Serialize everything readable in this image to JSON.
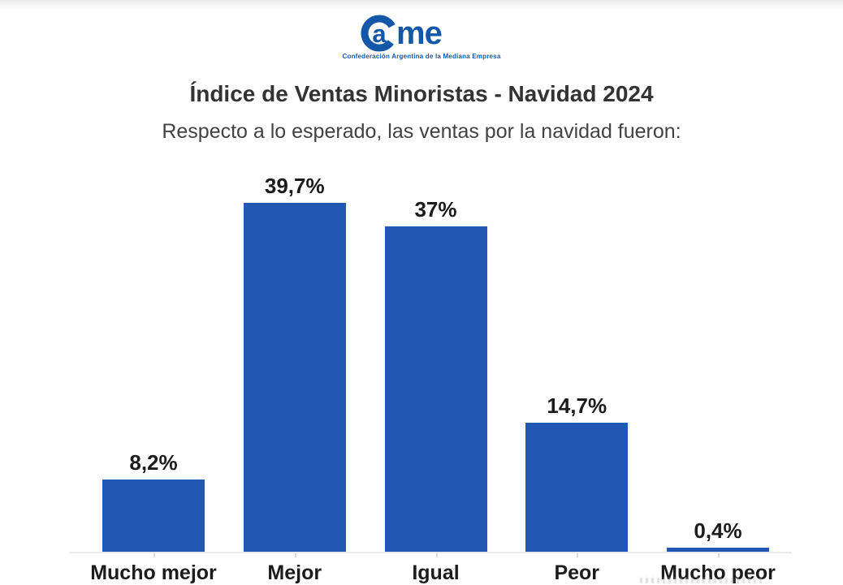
{
  "logo": {
    "name": "CAME",
    "ring_letter": "C",
    "text": "ame",
    "tagline": "Confederación Argentina de la Mediana Empresa",
    "color": "#1358a8"
  },
  "header": {
    "title": "Índice de Ventas Minoristas - Navidad 2024",
    "subtitle": "Respecto a lo esperado, las ventas por la navidad fueron:"
  },
  "chart_data": {
    "type": "bar",
    "title": "Índice de Ventas Minoristas - Navidad 2024",
    "subtitle": "Respecto a lo esperado, las ventas por la navidad fueron:",
    "categories": [
      "Mucho mejor",
      "Mejor",
      "Igual",
      "Peor",
      "Mucho peor"
    ],
    "values": [
      8.2,
      39.7,
      37.0,
      14.7,
      0.4
    ],
    "value_labels": [
      "8,2%",
      "39,7%",
      "37%",
      "14,7%",
      "0,4%"
    ],
    "xlabel": "",
    "ylabel": "",
    "ylim": [
      0,
      41
    ],
    "grid": false,
    "legend": "none",
    "bar_color": "#2058b4",
    "axis_line_color": "#eaeaea"
  }
}
